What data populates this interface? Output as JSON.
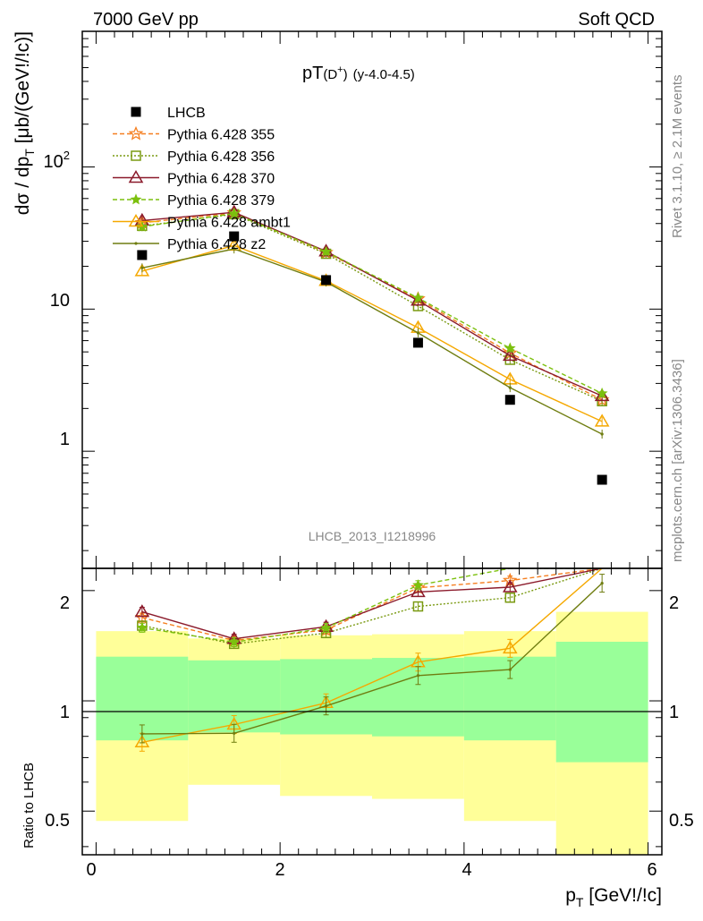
{
  "header": {
    "left": "7000 GeV pp",
    "right": "Soft QCD"
  },
  "side_labels": {
    "rivet": "Rivet 3.1.10, ≥ 2.1M events",
    "mcplots": "mcplots.cern.ch [arXiv:1306.3436]"
  },
  "chart_data": {
    "type": "line",
    "title": "pT(D+) (y-4.0-4.5)",
    "title_parts": {
      "main": "pT",
      "particle": "(D",
      "sup": "+",
      "close": ")",
      "range": "(y-4.0-4.5)"
    },
    "watermark": "LHCB_2013_I1218996",
    "ylabel": "dσ / dp_T [μb/(GeV!/!c)]",
    "ylabel_parts": {
      "pre": "dσ / dp",
      "sub": "T",
      "post": " [μb/(GeV!/!c)]"
    },
    "xlabel": "p_T [GeV!/!c]",
    "xlabel_parts": {
      "pre": "p",
      "sub": "T",
      "post": " [GeV!/!c]"
    },
    "ratio_ylabel": "Ratio to LHCB",
    "xlim": [
      -0.15,
      6.15
    ],
    "ylim": [
      0.15,
      900
    ],
    "yscale": "log",
    "ratio_ylim": [
      0.38,
      2.3
    ],
    "ratio_yscale": "log",
    "x_ticks": [
      "0",
      "2",
      "4",
      "6"
    ],
    "y_ticks": [
      "1",
      "10",
      "10^2"
    ],
    "y_tick_main": {
      "one": "1",
      "ten": "10",
      "hundred_base": "10",
      "hundred_exp": "2"
    },
    "ratio_ticks": [
      "0.5",
      "1",
      "2"
    ],
    "x": [
      0.5,
      1.5,
      2.5,
      3.5,
      4.5,
      5.5
    ],
    "x_edges": [
      0,
      1,
      2,
      3,
      4,
      5,
      6
    ],
    "data": {
      "name": "LHCB",
      "values": [
        24.0,
        32.5,
        16.0,
        5.8,
        2.3,
        0.63
      ],
      "band_green": [
        [
          0.78,
          1.32
        ],
        [
          0.82,
          1.29
        ],
        [
          0.81,
          1.3
        ],
        [
          0.8,
          1.31
        ],
        [
          0.78,
          1.32
        ],
        [
          0.68,
          1.45
        ]
      ],
      "band_yellow": [
        [
          0.47,
          1.55
        ],
        [
          0.59,
          1.48
        ],
        [
          0.55,
          1.51
        ],
        [
          0.54,
          1.52
        ],
        [
          0.47,
          1.55
        ],
        [
          0.36,
          1.75
        ]
      ]
    },
    "series": [
      {
        "name": "Pythia 6.428 355",
        "color": "#f57f20",
        "dash": "5,3",
        "marker": "star",
        "values": [
          40.5,
          47.5,
          25.0,
          11.8,
          4.9,
          2.3
        ]
      },
      {
        "name": "Pythia 6.428 356",
        "color": "#7a9a12",
        "dash": "2,2",
        "marker": "square-open",
        "values": [
          38.5,
          46.5,
          24.5,
          10.5,
          4.4,
          2.25
        ]
      },
      {
        "name": "Pythia 6.428 370",
        "color": "#8b1a2b",
        "dash": "",
        "marker": "triangle-open",
        "values": [
          42.0,
          48.0,
          25.5,
          11.5,
          4.7,
          2.45
        ]
      },
      {
        "name": "Pythia 6.428 379",
        "color": "#7cc00e",
        "dash": "5,3",
        "marker": "star-small",
        "values": [
          38.0,
          47.0,
          25.3,
          12.0,
          5.3,
          2.55
        ]
      },
      {
        "name": "Pythia 6.428 ambt1",
        "color": "#f5a800",
        "dash": "",
        "marker": "triangle-open",
        "values": [
          18.5,
          28.0,
          15.8,
          7.4,
          3.2,
          1.62
        ]
      },
      {
        "name": "Pythia 6.428 z2",
        "color": "#6f7d10",
        "dash": "",
        "marker": "none",
        "values": [
          19.5,
          26.5,
          15.5,
          6.8,
          2.8,
          1.32
        ]
      }
    ]
  }
}
